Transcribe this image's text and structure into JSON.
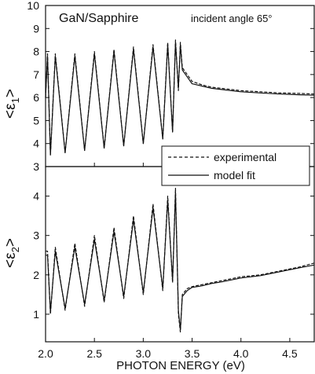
{
  "chart_data": [
    {
      "type": "line",
      "title": "GaN/Sapphire",
      "annotation": "incident angle 65°",
      "xlabel": "PHOTON ENERGY (eV)",
      "ylabel": "<ε1>",
      "ylabel_parts": {
        "open": "<",
        "symbol": "ε",
        "sub": "1",
        "close": ">"
      },
      "xlim": [
        2.0,
        4.75
      ],
      "ylim": [
        3,
        10
      ],
      "yticks": [
        3,
        4,
        5,
        6,
        7,
        8,
        9,
        10
      ],
      "xticks": [
        2.0,
        2.5,
        3.0,
        3.5,
        4.0,
        4.5
      ],
      "grid": false,
      "legend_position": "bottom-right",
      "series": [
        {
          "name": "experimental",
          "style": "dashed",
          "x": [
            2.0,
            2.02,
            2.05,
            2.1,
            2.2,
            2.3,
            2.4,
            2.5,
            2.6,
            2.7,
            2.8,
            2.9,
            3.0,
            3.1,
            3.2,
            3.25,
            3.3,
            3.33,
            3.36,
            3.38,
            3.4,
            3.45,
            3.5,
            3.6,
            3.7,
            3.8,
            4.0,
            4.2,
            4.4,
            4.6,
            4.75
          ],
          "y": [
            6.0,
            7.9,
            3.5,
            7.9,
            3.6,
            7.9,
            3.7,
            8.0,
            3.8,
            8.1,
            3.9,
            8.2,
            4.0,
            8.3,
            4.2,
            8.4,
            4.5,
            8.5,
            6.3,
            8.4,
            7.3,
            7.0,
            6.7,
            6.55,
            6.45,
            6.4,
            6.3,
            6.25,
            6.2,
            6.18,
            6.15
          ]
        },
        {
          "name": "model fit",
          "style": "solid",
          "x": [
            2.0,
            2.02,
            2.05,
            2.1,
            2.2,
            2.3,
            2.4,
            2.5,
            2.6,
            2.7,
            2.8,
            2.9,
            3.0,
            3.1,
            3.2,
            3.25,
            3.3,
            3.33,
            3.36,
            3.38,
            3.4,
            3.45,
            3.5,
            3.6,
            3.7,
            3.8,
            4.0,
            4.2,
            4.4,
            4.6,
            4.75
          ],
          "y": [
            6.0,
            7.8,
            3.5,
            7.8,
            3.6,
            7.8,
            3.7,
            7.9,
            3.8,
            8.0,
            3.9,
            8.1,
            4.0,
            8.2,
            4.2,
            8.3,
            4.5,
            8.4,
            6.4,
            8.3,
            7.2,
            6.9,
            6.6,
            6.5,
            6.4,
            6.35,
            6.25,
            6.2,
            6.15,
            6.12,
            6.1
          ]
        }
      ]
    },
    {
      "type": "line",
      "xlabel": "PHOTON ENERGY (eV)",
      "ylabel": "<ε2>",
      "ylabel_parts": {
        "open": "<",
        "symbol": "ε",
        "sub": "2",
        "close": ">"
      },
      "xlim": [
        2.0,
        4.75
      ],
      "ylim": [
        0.3,
        4.75
      ],
      "yticks": [
        1,
        2,
        3,
        4
      ],
      "xticks": [
        2.0,
        2.5,
        3.0,
        3.5,
        4.0,
        4.5
      ],
      "xtick_labels": [
        "2.0",
        "2.5",
        "3.0",
        "3.5",
        "4.0",
        "4.5"
      ],
      "grid": false,
      "series": [
        {
          "name": "experimental",
          "style": "dashed",
          "x": [
            2.0,
            2.02,
            2.05,
            2.1,
            2.2,
            2.3,
            2.4,
            2.5,
            2.6,
            2.7,
            2.8,
            2.9,
            3.0,
            3.1,
            3.2,
            3.25,
            3.3,
            3.33,
            3.36,
            3.38,
            3.4,
            3.45,
            3.5,
            3.6,
            3.7,
            3.8,
            4.0,
            4.2,
            4.4,
            4.6,
            4.75
          ],
          "y": [
            2.6,
            2.6,
            1.0,
            2.7,
            1.1,
            2.8,
            1.2,
            3.0,
            1.3,
            3.2,
            1.4,
            3.5,
            1.5,
            3.8,
            1.6,
            4.0,
            1.8,
            4.2,
            1.0,
            0.55,
            1.5,
            1.65,
            1.7,
            1.75,
            1.8,
            1.85,
            1.95,
            2.0,
            2.1,
            2.2,
            2.3
          ]
        },
        {
          "name": "model fit",
          "style": "solid",
          "x": [
            2.0,
            2.02,
            2.05,
            2.1,
            2.2,
            2.3,
            2.4,
            2.5,
            2.6,
            2.7,
            2.8,
            2.9,
            3.0,
            3.1,
            3.2,
            3.25,
            3.3,
            3.33,
            3.36,
            3.38,
            3.4,
            3.45,
            3.5,
            3.6,
            3.7,
            3.8,
            4.0,
            4.2,
            4.4,
            4.6,
            4.75
          ],
          "y": [
            2.5,
            2.5,
            1.05,
            2.6,
            1.15,
            2.7,
            1.25,
            2.9,
            1.35,
            3.1,
            1.45,
            3.4,
            1.55,
            3.7,
            1.65,
            3.9,
            1.85,
            4.1,
            1.1,
            0.6,
            1.45,
            1.6,
            1.68,
            1.72,
            1.78,
            1.82,
            1.92,
            1.98,
            2.08,
            2.18,
            2.25
          ]
        }
      ]
    }
  ]
}
